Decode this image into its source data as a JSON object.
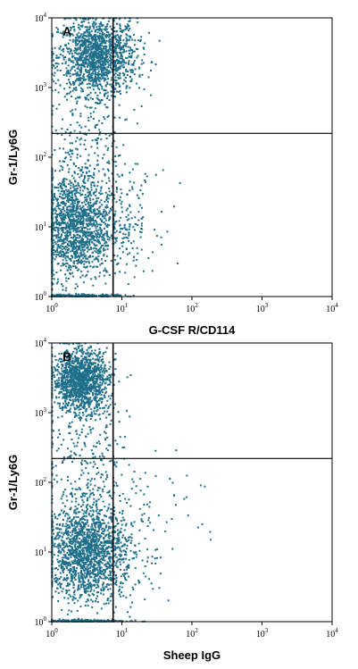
{
  "colors": {
    "dot": "#1f6f8b",
    "axis": "#000000",
    "background": "#ffffff"
  },
  "chart_data": [
    {
      "type": "scatter",
      "subtype": "flow-cytometry-dot-plot",
      "panel_label": "A",
      "xlabel": "G-CSF R/CD114",
      "ylabel": "Gr-1/Ly6G",
      "x_scale": "log",
      "y_scale": "log",
      "xlim": [
        1,
        10000
      ],
      "ylim": [
        1,
        10000
      ],
      "x_ticks": [
        {
          "base": "10",
          "exp": "0",
          "value": 1
        },
        {
          "base": "10",
          "exp": "1",
          "value": 10
        },
        {
          "base": "10",
          "exp": "2",
          "value": 100
        },
        {
          "base": "10",
          "exp": "3",
          "value": 1000
        },
        {
          "base": "10",
          "exp": "4",
          "value": 10000
        }
      ],
      "y_ticks": [
        {
          "base": "10",
          "exp": "0",
          "value": 1
        },
        {
          "base": "10",
          "exp": "1",
          "value": 10
        },
        {
          "base": "10",
          "exp": "2",
          "value": 100
        },
        {
          "base": "10",
          "exp": "3",
          "value": 1000
        },
        {
          "base": "10",
          "exp": "4",
          "value": 10000
        }
      ],
      "quadrant_gate": {
        "x": 7.5,
        "y": 220
      },
      "populations": [
        {
          "center": [
            4.5,
            2800
          ],
          "spread_log": [
            0.28,
            0.28
          ],
          "count": 1400
        },
        {
          "center": [
            2.0,
            10
          ],
          "spread_log": [
            0.28,
            0.38
          ],
          "count": 1500
        },
        {
          "center": [
            10,
            12
          ],
          "spread_log": [
            0.25,
            0.35
          ],
          "count": 180
        },
        {
          "center": [
            3.5,
            150
          ],
          "spread_log": [
            0.3,
            0.6
          ],
          "count": 250
        },
        {
          "center": [
            2.5,
            1.02
          ],
          "spread_log": [
            0.3,
            0.01
          ],
          "count": 250
        }
      ]
    },
    {
      "type": "scatter",
      "subtype": "flow-cytometry-dot-plot",
      "panel_label": "B",
      "xlabel": "Sheep IgG",
      "ylabel": "Gr-1/Ly6G",
      "x_scale": "log",
      "y_scale": "log",
      "xlim": [
        1,
        10000
      ],
      "ylim": [
        1,
        10000
      ],
      "x_ticks": [
        {
          "base": "10",
          "exp": "0",
          "value": 1
        },
        {
          "base": "10",
          "exp": "1",
          "value": 10
        },
        {
          "base": "10",
          "exp": "2",
          "value": 100
        },
        {
          "base": "10",
          "exp": "3",
          "value": 1000
        },
        {
          "base": "10",
          "exp": "4",
          "value": 10000
        }
      ],
      "y_ticks": [
        {
          "base": "10",
          "exp": "0",
          "value": 1
        },
        {
          "base": "10",
          "exp": "1",
          "value": 10
        },
        {
          "base": "10",
          "exp": "2",
          "value": 100
        },
        {
          "base": "10",
          "exp": "3",
          "value": 1000
        },
        {
          "base": "10",
          "exp": "4",
          "value": 10000
        }
      ],
      "quadrant_gate": {
        "x": 7.5,
        "y": 220
      },
      "populations": [
        {
          "center": [
            2.6,
            2900
          ],
          "spread_log": [
            0.2,
            0.22
          ],
          "count": 1300
        },
        {
          "center": [
            3.0,
            10
          ],
          "spread_log": [
            0.28,
            0.35
          ],
          "count": 1500
        },
        {
          "center": [
            9,
            10
          ],
          "spread_log": [
            0.3,
            0.4
          ],
          "count": 200
        },
        {
          "center": [
            3.0,
            200
          ],
          "spread_log": [
            0.3,
            0.6
          ],
          "count": 300
        },
        {
          "center": [
            3.0,
            1.02
          ],
          "spread_log": [
            0.3,
            0.01
          ],
          "count": 250
        },
        {
          "center": [
            30,
            50
          ],
          "spread_log": [
            0.5,
            0.5
          ],
          "count": 40
        }
      ]
    }
  ]
}
